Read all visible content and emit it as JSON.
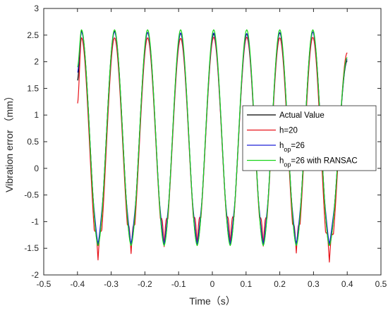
{
  "chart_data": {
    "type": "line",
    "xlabel": "Time（s）",
    "ylabel": "Vibration error （mm）",
    "xlim": [
      -0.5,
      0.5
    ],
    "ylim": [
      -2,
      3
    ],
    "xticks": [
      -0.5,
      -0.4,
      -0.3,
      -0.2,
      -0.1,
      0,
      0.1,
      0.2,
      0.3,
      0.4,
      0.5
    ],
    "yticks": [
      -2,
      -1.5,
      -1,
      -0.5,
      0,
      0.5,
      1,
      1.5,
      2,
      2.5,
      3
    ],
    "xtick_labels": [
      "-0.5",
      "-0.4",
      "-0.3",
      "-0.2",
      "-0.1",
      "0",
      "0.1",
      "0.2",
      "0.3",
      "0.4",
      "0.5"
    ],
    "ytick_labels": [
      "-2",
      "-1.5",
      "-1",
      "-0.5",
      "0",
      "0.5",
      "1",
      "1.5",
      "2",
      "2.5",
      "3"
    ],
    "grid": false,
    "legend_position": "right-middle",
    "x_range": [
      -0.4,
      0.4
    ],
    "peak_times": [
      -0.388,
      -0.29,
      -0.192,
      -0.094,
      0.004,
      0.102,
      0.2,
      0.298
    ],
    "trough_times": [
      -0.339,
      -0.241,
      -0.143,
      -0.045,
      0.053,
      0.151,
      0.249,
      0.347
    ],
    "series": [
      {
        "name": "Actual Value",
        "legend_parts": [
          {
            "text": "Actual Value"
          }
        ],
        "color": "#000000",
        "peak_values": [
          2.58,
          2.57,
          2.55,
          2.53,
          2.52,
          2.52,
          2.54,
          2.56
        ],
        "trough_values": [
          -1.43,
          -1.43,
          -1.43,
          -1.43,
          -1.43,
          -1.43,
          -1.43,
          -1.43
        ],
        "endpoints": [
          1.65,
          2.02
        ]
      },
      {
        "name": "h=20",
        "legend_parts": [
          {
            "text": "h=20"
          }
        ],
        "color": "#e8131a",
        "peak_values": [
          2.45,
          2.45,
          2.45,
          2.44,
          2.46,
          2.46,
          2.45,
          2.46
        ],
        "trough_values": [
          -1.72,
          -1.6,
          -1.47,
          -1.45,
          -1.44,
          -1.46,
          -1.59,
          -1.76
        ],
        "endpoints": [
          1.22,
          2.17
        ]
      },
      {
        "name": "hop=26",
        "legend_parts": [
          {
            "text": "h"
          },
          {
            "text": "op",
            "sub": true
          },
          {
            "text": "=26"
          }
        ],
        "color": "#1f20d6",
        "peak_values": [
          2.56,
          2.56,
          2.55,
          2.54,
          2.54,
          2.53,
          2.55,
          2.56
        ],
        "trough_values": [
          -1.42,
          -1.42,
          -1.42,
          -1.42,
          -1.42,
          -1.42,
          -1.42,
          -1.42
        ],
        "endpoints": [
          1.8,
          2.05
        ]
      },
      {
        "name": "hop=26 with RANSAC",
        "legend_parts": [
          {
            "text": "h"
          },
          {
            "text": "op",
            "sub": true
          },
          {
            "text": "=26 with RANSAC"
          }
        ],
        "color": "#19d419",
        "peak_values": [
          2.6,
          2.6,
          2.6,
          2.6,
          2.6,
          2.6,
          2.6,
          2.6
        ],
        "trough_values": [
          -1.45,
          -1.45,
          -1.45,
          -1.45,
          -1.45,
          -1.45,
          -1.45,
          -1.45
        ],
        "endpoints": [
          1.9,
          2.08
        ]
      }
    ]
  }
}
